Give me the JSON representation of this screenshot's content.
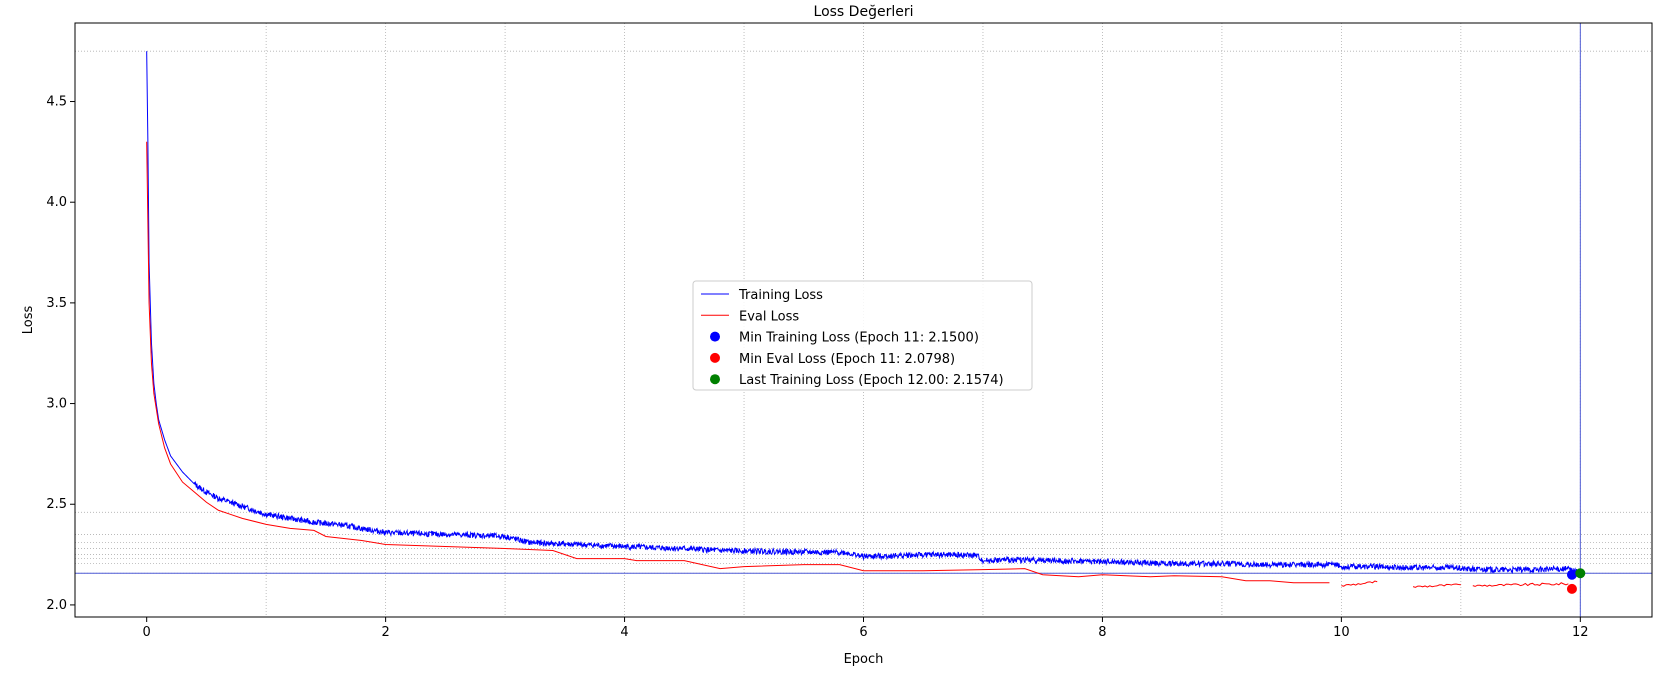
{
  "chart_data": {
    "type": "line",
    "title": "Loss Değerleri",
    "xlabel": "Epoch",
    "ylabel": "Loss",
    "xlim": [
      -0.6,
      12.6
    ],
    "ylim": [
      1.94,
      4.89
    ],
    "xticks": [
      0,
      2,
      4,
      6,
      8,
      10,
      12
    ],
    "xtick_labels": [
      "0",
      "2",
      "4",
      "6",
      "8",
      "10",
      "12"
    ],
    "yticks": [
      2.0,
      2.5,
      3.0,
      3.5,
      4.0,
      4.5
    ],
    "ytick_labels": [
      "2.0",
      "2.5",
      "3.0",
      "3.5",
      "4.0",
      "4.5"
    ],
    "grid": true,
    "legend_position": "center",
    "series": [
      {
        "name": "Training Loss",
        "color": "#0000ff",
        "x": [
          0,
          0.01,
          0.02,
          0.04,
          0.06,
          0.08,
          0.1,
          0.15,
          0.2,
          0.3,
          0.4,
          0.5,
          0.6,
          0.7,
          0.8,
          0.9,
          1.0,
          1.2,
          1.4,
          1.6,
          1.8,
          2.0,
          2.2,
          2.5,
          2.8,
          3.0,
          3.2,
          3.4,
          3.6,
          3.8,
          4.0,
          4.2,
          4.5,
          4.8,
          5.0,
          5.3,
          5.6,
          5.85,
          6.0,
          6.3,
          6.6,
          6.95,
          7.0,
          7.3,
          7.6,
          8.0,
          8.3,
          8.6,
          9.0,
          9.3,
          9.6,
          9.95,
          10.0,
          10.3,
          10.6,
          10.95,
          11.0,
          11.3,
          11.6,
          11.9,
          12.0
        ],
        "y": [
          4.75,
          4.3,
          3.7,
          3.3,
          3.1,
          3.0,
          2.92,
          2.82,
          2.74,
          2.66,
          2.6,
          2.56,
          2.53,
          2.51,
          2.49,
          2.47,
          2.45,
          2.43,
          2.41,
          2.4,
          2.38,
          2.36,
          2.355,
          2.35,
          2.345,
          2.34,
          2.31,
          2.305,
          2.3,
          2.295,
          2.29,
          2.285,
          2.28,
          2.27,
          2.268,
          2.265,
          2.262,
          2.26,
          2.24,
          2.245,
          2.25,
          2.245,
          2.22,
          2.225,
          2.22,
          2.215,
          2.21,
          2.205,
          2.205,
          2.2,
          2.2,
          2.2,
          2.19,
          2.19,
          2.185,
          2.185,
          2.18,
          2.175,
          2.175,
          2.18,
          2.1574
        ]
      },
      {
        "name": "Eval Loss",
        "color": "#ff0000",
        "x": [
          0,
          0.01,
          0.02,
          0.04,
          0.06,
          0.1,
          0.15,
          0.2,
          0.3,
          0.4,
          0.5,
          0.6,
          0.7,
          0.8,
          1.0,
          1.2,
          1.4,
          1.5,
          1.8,
          2.0,
          2.5,
          3.0,
          3.4,
          3.6,
          4.0,
          4.1,
          4.5,
          4.8,
          5.0,
          5.5,
          5.8,
          6.0,
          6.5,
          7.0,
          7.35,
          7.5,
          7.8,
          8.0,
          8.4,
          8.6,
          9.0,
          9.2,
          9.4,
          9.6,
          9.9
        ],
        "y": [
          4.3,
          3.9,
          3.5,
          3.2,
          3.05,
          2.9,
          2.78,
          2.7,
          2.61,
          2.56,
          2.51,
          2.47,
          2.45,
          2.43,
          2.4,
          2.38,
          2.37,
          2.34,
          2.32,
          2.3,
          2.29,
          2.28,
          2.27,
          2.23,
          2.23,
          2.22,
          2.22,
          2.18,
          2.19,
          2.2,
          2.2,
          2.17,
          2.17,
          2.175,
          2.18,
          2.15,
          2.14,
          2.15,
          2.14,
          2.145,
          2.14,
          2.12,
          2.12,
          2.11,
          2.11
        ]
      },
      {
        "name": "Eval Loss (cont.)",
        "color": "#ff0000",
        "segments": [
          {
            "x": [
              10.0,
              10.3
            ],
            "y": [
              2.095,
              2.115
            ]
          },
          {
            "x": [
              10.6,
              11.0
            ],
            "y": [
              2.09,
              2.1
            ]
          },
          {
            "x": [
              11.1,
              11.9
            ],
            "y": [
              2.095,
              2.105
            ]
          }
        ]
      }
    ],
    "markers": [
      {
        "name": "Min Training Loss (Epoch 11: 2.1500)",
        "x": 11.93,
        "y": 2.15,
        "color": "#0000ff"
      },
      {
        "name": "Min Eval Loss (Epoch 11: 2.0798)",
        "x": 11.93,
        "y": 2.0798,
        "color": "#ff0000"
      },
      {
        "name": "Last Training Loss (Epoch 12.00: 2.1574)",
        "x": 12.0,
        "y": 2.1574,
        "color": "#008000"
      }
    ],
    "reference_lines": {
      "vertical_x": 12.0,
      "horizontal_y": 2.1574,
      "color": "#4f5bd5"
    }
  }
}
